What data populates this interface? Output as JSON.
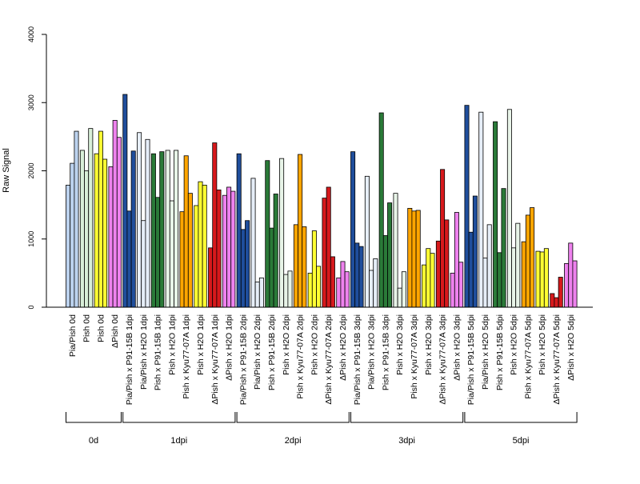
{
  "chart_data": {
    "type": "bar",
    "ylabel": "Raw Signal",
    "ylim": [
      0,
      4000
    ],
    "yticks": [
      0,
      1000,
      2000,
      3000,
      4000
    ],
    "grid": false,
    "legend": "none",
    "colors": {
      "Pia/Pish": "#bcd2ee",
      "Pish": "#d8efd8",
      "Pish_0d": "#ffff33",
      "dPish": "#ee82ee",
      "P91-15B": "#1f4e9c",
      "Pia_H2O": "#e6eef8",
      "Pish_P91": "#2a7a38",
      "Pish_H2O": "#e8f4e8",
      "Kyu77": "#ffa500",
      "Pish_H2O_b": "#ffff33",
      "dPish_Kyu77": "#d7191c",
      "dPish_H2O": "#ee82ee"
    },
    "categories": [
      "Pia/Pish 0d",
      "Pish 0d",
      "Pish 0d",
      "ΔPish 0d",
      "Pia/Pish x P91-15B 1dpi",
      "Pia/Pish x H2O 1dpi",
      "Pish x P91-15B 1dpi",
      "Pish x H2O 1dpi",
      "Pish x Kyu77-07A 1dpi",
      "Pish x H2O 1dpi",
      "ΔPish x Kyu77-07A 1dpi",
      "ΔPish x H2O 1dpi",
      "Pia/Pish x P91-15B 2dpi",
      "Pia/Pish x H2O 2dpi",
      "Pish x P91-15B 2dpi",
      "Pish x H2O 2dpi",
      "Pish x Kyu77-07A 2dpi",
      "Pish x H2O 2dpi",
      "ΔPish x Kyu77-07A 2dpi",
      "ΔPish x H2O 2dpi",
      "Pia/Pish x P91-15B 3dpi",
      "Pia/Pish x H2O 3dpi",
      "Pish x P91-15B 3dpi",
      "Pish x H2O 3dpi",
      "Pish x Kyu77-07A 3dpi",
      "Pish x H2O 3dpi",
      "ΔPish x Kyu77-07A 3dpi",
      "ΔPish x H2O 3dpi",
      "Pia/Pish x P91-15B 5dpi",
      "Pia/Pish x H2O 5dpi",
      "Pish x P91-15B 5dpi",
      "Pish x H2O 5dpi",
      "Pish x Kyu77-07A 5dpi",
      "Pish x H2O 5dpi",
      "ΔPish x Kyu77-07A 5dpi",
      "ΔPish x H2O 5dpi"
    ],
    "color_keys": [
      "Pia/Pish",
      "Pish",
      "Pish_0d",
      "dPish",
      "P91-15B",
      "Pia_H2O",
      "Pish_P91",
      "Pish_H2O",
      "Kyu77",
      "Pish_H2O_b",
      "dPish_Kyu77",
      "dPish_H2O",
      "P91-15B",
      "Pia_H2O",
      "Pish_P91",
      "Pish_H2O",
      "Kyu77",
      "Pish_H2O_b",
      "dPish_Kyu77",
      "dPish_H2O",
      "P91-15B",
      "Pia_H2O",
      "Pish_P91",
      "Pish_H2O",
      "Kyu77",
      "Pish_H2O_b",
      "dPish_Kyu77",
      "dPish_H2O",
      "P91-15B",
      "Pia_H2O",
      "Pish_P91",
      "Pish_H2O",
      "Kyu77",
      "Pish_H2O_b",
      "dPish_Kyu77",
      "dPish_H2O"
    ],
    "values": [
      [
        1790,
        2110,
        2580
      ],
      [
        2300,
        2000,
        2620
      ],
      [
        2250,
        2580,
        2170
      ],
      [
        2060,
        2740,
        2490
      ],
      [
        3120,
        1410,
        2290
      ],
      [
        2560,
        1270,
        2460
      ],
      [
        2250,
        1610,
        2280
      ],
      [
        2300,
        1560,
        2300
      ],
      [
        1400,
        2220,
        1670
      ],
      [
        1490,
        1840,
        1790
      ],
      [
        870,
        2410,
        1720
      ],
      [
        1640,
        1760,
        1700
      ],
      [
        2250,
        1140,
        1270
      ],
      [
        1890,
        370,
        430
      ],
      [
        2150,
        1160,
        1660
      ],
      [
        2180,
        480,
        530
      ],
      [
        1210,
        2240,
        1180
      ],
      [
        500,
        1120,
        600
      ],
      [
        1600,
        1760,
        740
      ],
      [
        430,
        670,
        520
      ],
      [
        2280,
        940,
        890
      ],
      [
        1920,
        540,
        710
      ],
      [
        2850,
        1050,
        1530
      ],
      [
        1670,
        280,
        520
      ],
      [
        1450,
        1410,
        1420
      ],
      [
        620,
        860,
        790
      ],
      [
        970,
        2020,
        1280
      ],
      [
        500,
        1390,
        660
      ],
      [
        2960,
        1100,
        1630
      ],
      [
        2860,
        720,
        1210
      ],
      [
        2720,
        800,
        1740
      ],
      [
        2900,
        870,
        1230
      ],
      [
        960,
        1350,
        1460
      ],
      [
        820,
        810,
        860
      ],
      [
        200,
        140,
        440
      ],
      [
        640,
        940,
        680
      ]
    ],
    "groups": [
      {
        "label": "0d",
        "start": 0,
        "end": 3
      },
      {
        "label": "1dpi",
        "start": 4,
        "end": 11
      },
      {
        "label": "2dpi",
        "start": 12,
        "end": 19
      },
      {
        "label": "3dpi",
        "start": 20,
        "end": 27
      },
      {
        "label": "5dpi",
        "start": 28,
        "end": 35
      }
    ]
  }
}
